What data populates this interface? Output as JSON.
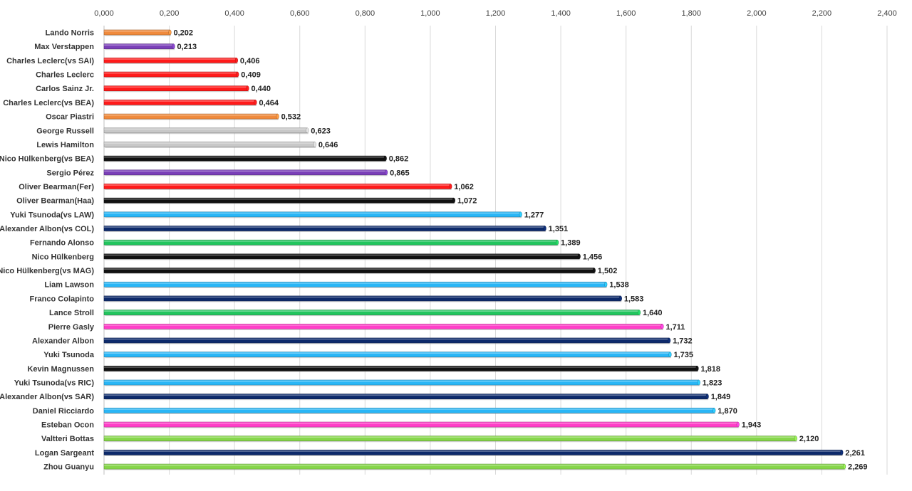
{
  "chart_data": {
    "type": "bar",
    "orientation": "horizontal",
    "categories": [
      "Lando Norris",
      "Max Verstappen",
      "Charles Leclerc(vs SAI)",
      "Charles Leclerc",
      "Carlos Sainz Jr.",
      "Charles Leclerc(vs BEA)",
      "Oscar Piastri",
      "George Russell",
      "Lewis Hamilton",
      "Nico Hülkenberg(vs BEA)",
      "Sergio Pérez",
      "Oliver Bearman(Fer)",
      "Oliver Bearman(Haa)",
      "Yuki Tsunoda(vs LAW)",
      "Alexander Albon(vs COL)",
      "Fernando Alonso",
      "Nico Hülkenberg",
      "Nico Hülkenberg(vs MAG)",
      "Liam Lawson",
      "Franco Colapinto",
      "Lance Stroll",
      "Pierre Gasly",
      "Alexander Albon",
      "Yuki Tsunoda",
      "Kevin Magnussen",
      "Yuki Tsunoda(vs RIC)",
      "Alexander Albon(vs SAR)",
      "Daniel Ricciardo",
      "Esteban Ocon",
      "Valtteri Bottas",
      "Logan Sargeant",
      "Zhou Guanyu"
    ],
    "values": [
      0.202,
      0.213,
      0.406,
      0.409,
      0.44,
      0.464,
      0.532,
      0.623,
      0.646,
      0.862,
      0.865,
      1.062,
      1.072,
      1.277,
      1.351,
      1.389,
      1.456,
      1.502,
      1.538,
      1.583,
      1.64,
      1.711,
      1.732,
      1.735,
      1.818,
      1.823,
      1.849,
      1.87,
      1.943,
      2.12,
      2.261,
      2.269
    ],
    "value_labels": [
      "0,202",
      "0,213",
      "0,406",
      "0,409",
      "0,440",
      "0,464",
      "0,532",
      "0,623",
      "0,646",
      "0,862",
      "0,865",
      "1,062",
      "1,072",
      "1,277",
      "1,351",
      "1,389",
      "1,456",
      "1,502",
      "1,538",
      "1,583",
      "1,640",
      "1,711",
      "1,732",
      "1,735",
      "1,818",
      "1,823",
      "1,849",
      "1,870",
      "1,943",
      "2,120",
      "2,261",
      "2,269"
    ],
    "bar_colors": [
      "#f08a3c",
      "#7a3fb8",
      "#ff1a1a",
      "#ff1a1a",
      "#ff1a1a",
      "#ff1a1a",
      "#f08a3c",
      "#c8c8c8",
      "#c8c8c8",
      "#111111",
      "#7a3fb8",
      "#ff1a1a",
      "#111111",
      "#29b6f6",
      "#0d2a6b",
      "#22c55e",
      "#111111",
      "#111111",
      "#29b6f6",
      "#0d2a6b",
      "#22c55e",
      "#ff3fc8",
      "#0d2a6b",
      "#29b6f6",
      "#111111",
      "#29b6f6",
      "#0d2a6b",
      "#29b6f6",
      "#ff3fc8",
      "#86d64a",
      "#0d2a6b",
      "#86d64a"
    ],
    "x_ticks": [
      0,
      0.2,
      0.4,
      0.6,
      0.8,
      1.0,
      1.2,
      1.4,
      1.6,
      1.8,
      2.0,
      2.2,
      2.4
    ],
    "x_tick_labels": [
      "0,000",
      "0,200",
      "0,400",
      "0,600",
      "0,800",
      "1,000",
      "1,200",
      "1,400",
      "1,600",
      "1,800",
      "2,000",
      "2,200",
      "2,400"
    ],
    "xlim": [
      0,
      2.4
    ],
    "x_axis_position": "top",
    "grid": true,
    "title": "",
    "xlabel": "",
    "ylabel": ""
  }
}
